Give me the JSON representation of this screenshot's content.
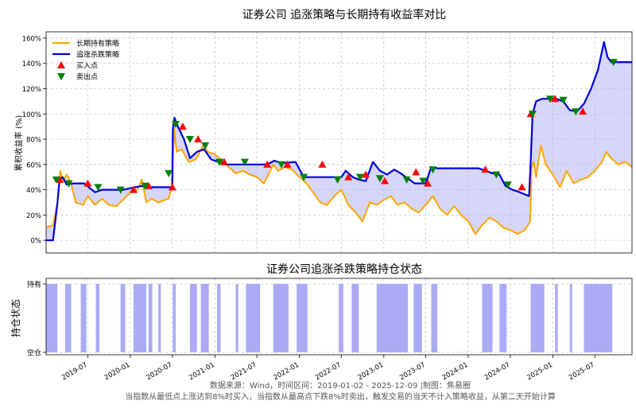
{
  "chart_data": [
    {
      "type": "line",
      "title": "证券公司 追涨策略与长期持有收益率对比",
      "xlabel": "",
      "ylabel": "累积收益率 (%)",
      "ylim": [
        -10,
        165
      ],
      "y_ticks": [
        0,
        20,
        40,
        60,
        80,
        100,
        120,
        140,
        160
      ],
      "y_tick_labels": [
        "0%",
        "20%",
        "40%",
        "60%",
        "80%",
        "100%",
        "120%",
        "140%",
        "160%"
      ],
      "grid": true,
      "legend_position": "top-left",
      "x_range": [
        "2019-01-02",
        "2025-12-09"
      ],
      "series": [
        {
          "name": "长期持有策略",
          "color": "#ffa500",
          "points": [
            [
              "2019-01-02",
              10
            ],
            [
              "2019-02-01",
              12
            ],
            [
              "2019-02-20",
              30
            ],
            [
              "2019-03-05",
              55
            ],
            [
              "2019-03-15",
              46
            ],
            [
              "2019-04-01",
              52
            ],
            [
              "2019-04-20",
              45
            ],
            [
              "2019-05-10",
              30
            ],
            [
              "2019-06-10",
              28
            ],
            [
              "2019-07-01",
              35
            ],
            [
              "2019-08-01",
              28
            ],
            [
              "2019-09-01",
              33
            ],
            [
              "2019-10-01",
              28
            ],
            [
              "2019-11-01",
              27
            ],
            [
              "2019-12-01",
              32
            ],
            [
              "2020-01-01",
              38
            ],
            [
              "2020-02-01",
              40
            ],
            [
              "2020-02-20",
              48
            ],
            [
              "2020-03-10",
              30
            ],
            [
              "2020-04-01",
              33
            ],
            [
              "2020-05-01",
              30
            ],
            [
              "2020-06-15",
              33
            ],
            [
              "2020-07-01",
              45
            ],
            [
              "2020-07-08",
              88
            ],
            [
              "2020-07-20",
              70
            ],
            [
              "2020-08-10",
              72
            ],
            [
              "2020-09-10",
              62
            ],
            [
              "2020-10-10",
              64
            ],
            [
              "2020-11-10",
              75
            ],
            [
              "2020-12-01",
              70
            ],
            [
              "2021-01-01",
              68
            ],
            [
              "2021-02-01",
              63
            ],
            [
              "2021-03-01",
              58
            ],
            [
              "2021-04-01",
              53
            ],
            [
              "2021-05-01",
              55
            ],
            [
              "2021-06-01",
              52
            ],
            [
              "2021-07-01",
              50
            ],
            [
              "2021-08-01",
              45
            ],
            [
              "2021-08-20",
              52
            ],
            [
              "2021-09-10",
              60
            ],
            [
              "2021-10-01",
              55
            ],
            [
              "2021-11-01",
              58
            ],
            [
              "2021-12-01",
              56
            ],
            [
              "2022-01-01",
              50
            ],
            [
              "2022-02-01",
              45
            ],
            [
              "2022-03-01",
              38
            ],
            [
              "2022-04-01",
              30
            ],
            [
              "2022-05-01",
              28
            ],
            [
              "2022-06-01",
              35
            ],
            [
              "2022-07-01",
              40
            ],
            [
              "2022-08-01",
              28
            ],
            [
              "2022-09-01",
              22
            ],
            [
              "2022-10-01",
              15
            ],
            [
              "2022-11-01",
              30
            ],
            [
              "2022-12-01",
              28
            ],
            [
              "2023-01-01",
              32
            ],
            [
              "2023-02-01",
              35
            ],
            [
              "2023-03-01",
              28
            ],
            [
              "2023-04-01",
              30
            ],
            [
              "2023-05-01",
              25
            ],
            [
              "2023-06-01",
              22
            ],
            [
              "2023-07-01",
              28
            ],
            [
              "2023-08-01",
              35
            ],
            [
              "2023-09-01",
              25
            ],
            [
              "2023-10-01",
              20
            ],
            [
              "2023-11-01",
              27
            ],
            [
              "2023-12-01",
              20
            ],
            [
              "2024-01-01",
              15
            ],
            [
              "2024-02-01",
              5
            ],
            [
              "2024-03-01",
              12
            ],
            [
              "2024-04-01",
              18
            ],
            [
              "2024-05-01",
              15
            ],
            [
              "2024-06-01",
              10
            ],
            [
              "2024-07-01",
              8
            ],
            [
              "2024-08-01",
              5
            ],
            [
              "2024-09-01",
              8
            ],
            [
              "2024-09-25",
              15
            ],
            [
              "2024-10-01",
              58
            ],
            [
              "2024-10-10",
              62
            ],
            [
              "2024-10-20",
              50
            ],
            [
              "2024-11-10",
              75
            ],
            [
              "2024-12-01",
              60
            ],
            [
              "2025-01-01",
              52
            ],
            [
              "2025-02-01",
              42
            ],
            [
              "2025-03-01",
              55
            ],
            [
              "2025-04-01",
              45
            ],
            [
              "2025-05-01",
              48
            ],
            [
              "2025-06-01",
              50
            ],
            [
              "2025-07-01",
              55
            ],
            [
              "2025-08-01",
              62
            ],
            [
              "2025-08-20",
              70
            ],
            [
              "2025-09-10",
              65
            ],
            [
              "2025-10-10",
              60
            ],
            [
              "2025-11-10",
              62
            ],
            [
              "2025-12-09",
              58
            ]
          ]
        },
        {
          "name": "追涨杀跌策略",
          "color": "#0000dd",
          "points": [
            [
              "2019-01-02",
              0
            ],
            [
              "2019-02-01",
              0
            ],
            [
              "2019-02-20",
              30
            ],
            [
              "2019-03-01",
              48
            ],
            [
              "2019-03-15",
              50
            ],
            [
              "2019-04-01",
              44
            ],
            [
              "2019-05-01",
              45
            ],
            [
              "2019-06-15",
              45
            ],
            [
              "2019-08-01",
              38
            ],
            [
              "2019-09-01",
              40
            ],
            [
              "2019-12-01",
              40
            ],
            [
              "2020-01-20",
              42
            ],
            [
              "2020-02-20",
              43
            ],
            [
              "2020-03-20",
              42
            ],
            [
              "2020-06-30",
              42
            ],
            [
              "2020-07-03",
              88
            ],
            [
              "2020-07-10",
              97
            ],
            [
              "2020-07-25",
              90
            ],
            [
              "2020-08-20",
              80
            ],
            [
              "2020-09-15",
              65
            ],
            [
              "2020-10-15",
              70
            ],
            [
              "2020-11-15",
              72
            ],
            [
              "2020-12-15",
              64
            ],
            [
              "2021-01-15",
              62
            ],
            [
              "2021-02-15",
              60
            ],
            [
              "2021-05-15",
              60
            ],
            [
              "2021-08-15",
              60
            ],
            [
              "2021-09-15",
              63
            ],
            [
              "2021-10-15",
              61
            ],
            [
              "2021-12-15",
              62
            ],
            [
              "2022-01-20",
              50
            ],
            [
              "2022-05-15",
              50
            ],
            [
              "2022-07-01",
              50
            ],
            [
              "2022-07-20",
              55
            ],
            [
              "2022-08-20",
              50
            ],
            [
              "2022-09-15",
              48
            ],
            [
              "2022-10-15",
              47
            ],
            [
              "2022-11-15",
              62
            ],
            [
              "2022-12-15",
              55
            ],
            [
              "2023-01-15",
              52
            ],
            [
              "2023-02-15",
              56
            ],
            [
              "2023-03-15",
              53
            ],
            [
              "2023-05-15",
              45
            ],
            [
              "2023-07-01",
              45
            ],
            [
              "2023-07-25",
              58
            ],
            [
              "2023-08-20",
              57
            ],
            [
              "2024-01-10",
              57
            ],
            [
              "2024-02-15",
              57
            ],
            [
              "2024-03-15",
              55
            ],
            [
              "2024-04-15",
              53
            ],
            [
              "2024-05-15",
              52
            ],
            [
              "2024-06-10",
              43
            ],
            [
              "2024-07-10",
              40
            ],
            [
              "2024-08-10",
              38
            ],
            [
              "2024-09-20",
              35
            ],
            [
              "2024-09-27",
              63
            ],
            [
              "2024-10-05",
              100
            ],
            [
              "2024-10-20",
              110
            ],
            [
              "2024-11-15",
              112
            ],
            [
              "2025-01-15",
              112
            ],
            [
              "2025-02-15",
              110
            ],
            [
              "2025-03-15",
              103
            ],
            [
              "2025-04-15",
              102
            ],
            [
              "2025-05-15",
              108
            ],
            [
              "2025-06-15",
              120
            ],
            [
              "2025-07-15",
              135
            ],
            [
              "2025-08-10",
              157
            ],
            [
              "2025-08-25",
              145
            ],
            [
              "2025-09-10",
              141
            ],
            [
              "2025-12-09",
              141
            ]
          ]
        }
      ],
      "markers": [
        {
          "name": "买入点",
          "color": "#ff0000",
          "points": [
            [
              "2019-03-01",
              48
            ],
            [
              "2019-07-01",
              45
            ],
            [
              "2020-01-15",
              40
            ],
            [
              "2020-03-20",
              43
            ],
            [
              "2020-07-01",
              42
            ],
            [
              "2020-08-15",
              90
            ],
            [
              "2020-10-20",
              80
            ],
            [
              "2021-02-10",
              62
            ],
            [
              "2021-08-15",
              60
            ],
            [
              "2021-11-10",
              60
            ],
            [
              "2022-04-10",
              60
            ],
            [
              "2022-08-01",
              50
            ],
            [
              "2022-10-15",
              52
            ],
            [
              "2023-01-05",
              47
            ],
            [
              "2023-05-20",
              54
            ],
            [
              "2023-07-10",
              45
            ],
            [
              "2024-03-15",
              56
            ],
            [
              "2024-08-20",
              42
            ],
            [
              "2024-09-27",
              100
            ],
            [
              "2025-01-10",
              112
            ],
            [
              "2025-05-10",
              102
            ]
          ]
        },
        {
          "name": "卖出点",
          "color": "#008000",
          "points": [
            [
              "2019-02-15",
              48
            ],
            [
              "2019-04-10",
              45
            ],
            [
              "2019-08-15",
              42
            ],
            [
              "2019-11-20",
              40
            ],
            [
              "2020-03-05",
              43
            ],
            [
              "2020-06-15",
              53
            ],
            [
              "2020-07-15",
              92
            ],
            [
              "2020-09-15",
              80
            ],
            [
              "2020-11-20",
              75
            ],
            [
              "2021-01-20",
              62
            ],
            [
              "2021-05-10",
              62
            ],
            [
              "2021-10-15",
              60
            ],
            [
              "2022-01-20",
              50
            ],
            [
              "2022-06-15",
              48
            ],
            [
              "2022-09-20",
              50
            ],
            [
              "2022-12-15",
              49
            ],
            [
              "2023-04-10",
              48
            ],
            [
              "2023-06-20",
              47
            ],
            [
              "2023-08-01",
              56
            ],
            [
              "2024-05-01",
              52
            ],
            [
              "2024-06-20",
              44
            ],
            [
              "2024-10-05",
              100
            ],
            [
              "2024-12-20",
              112
            ],
            [
              "2025-02-15",
              111
            ],
            [
              "2025-04-10",
              102
            ],
            [
              "2025-09-20",
              141
            ]
          ]
        }
      ]
    },
    {
      "type": "area",
      "title": "证券公司追涨杀跌策略持仓状态",
      "xlabel": "",
      "ylabel": "持仓状态",
      "y_tick_labels": [
        "空仓",
        "持有"
      ],
      "grid": true,
      "color": "#aaaaf5",
      "x_ticks": [
        "2019-07",
        "2020-01",
        "2020-07",
        "2021-01",
        "2021-07",
        "2022-01",
        "2022-07",
        "2023-01",
        "2023-07",
        "2024-01",
        "2024-07",
        "2025-01",
        "2025-07"
      ],
      "holding_periods": [
        [
          "2019-01-02",
          "2019-02-20"
        ],
        [
          "2019-03-25",
          "2019-04-20"
        ],
        [
          "2019-06-01",
          "2019-06-25"
        ],
        [
          "2019-08-05",
          "2019-08-20"
        ],
        [
          "2019-11-20",
          "2019-12-10"
        ],
        [
          "2020-01-15",
          "2020-03-10"
        ],
        [
          "2020-03-20",
          "2020-04-05"
        ],
        [
          "2020-05-01",
          "2020-05-12"
        ],
        [
          "2020-07-03",
          "2020-07-15"
        ],
        [
          "2020-09-15",
          "2020-10-15"
        ],
        [
          "2020-11-01",
          "2020-12-05"
        ],
        [
          "2021-01-10",
          "2021-01-25"
        ],
        [
          "2021-04-01",
          "2021-04-12"
        ],
        [
          "2021-05-15",
          "2021-07-15"
        ],
        [
          "2021-09-10",
          "2021-11-15"
        ],
        [
          "2021-12-20",
          "2022-02-05"
        ],
        [
          "2022-06-20",
          "2022-07-10"
        ],
        [
          "2022-08-15",
          "2022-09-15"
        ],
        [
          "2022-12-01",
          "2023-04-15"
        ],
        [
          "2023-05-10",
          "2023-06-15"
        ],
        [
          "2023-07-25",
          "2023-08-20"
        ],
        [
          "2024-03-01",
          "2024-04-15"
        ],
        [
          "2024-05-15",
          "2024-06-15"
        ],
        [
          "2024-09-27",
          "2024-11-25"
        ],
        [
          "2025-01-10",
          "2025-01-22"
        ],
        [
          "2025-03-15",
          "2025-03-25"
        ],
        [
          "2025-05-15",
          "2025-09-15"
        ]
      ]
    }
  ],
  "footer": {
    "line1": "数据来源：Wind，时间区间：2019-01-02 - 2025-12-09 |制图：焦易圈",
    "line2": "当指数从最低点上涨达到8%时买入，当指数从最高点下跌8%时卖出，触发交易的当天不计入策略收益，从第二天开始计算"
  }
}
